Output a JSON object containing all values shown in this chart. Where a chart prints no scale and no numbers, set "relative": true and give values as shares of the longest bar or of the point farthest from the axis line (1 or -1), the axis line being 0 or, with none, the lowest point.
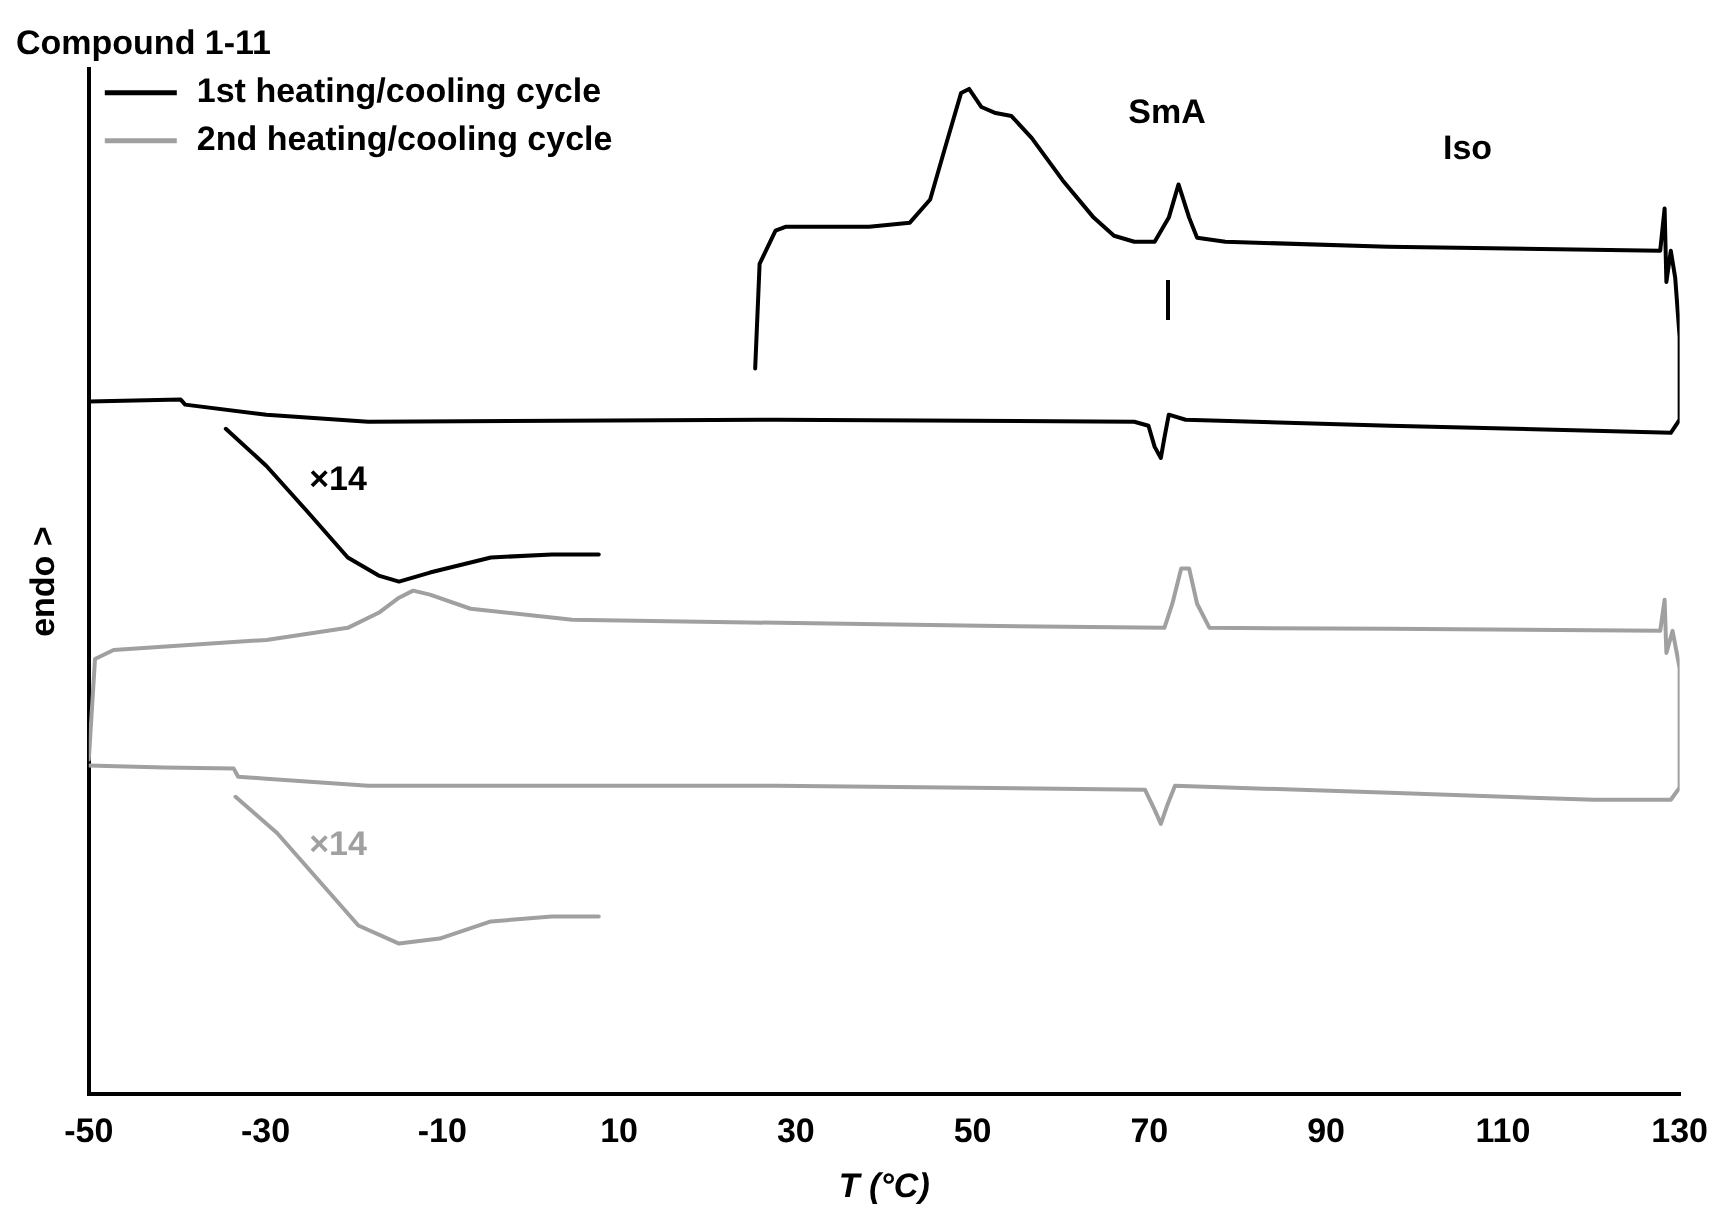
{
  "chart_data": {
    "type": "line",
    "title": "Compound 1-11",
    "xlabel": "T (°C)",
    "ylabel": "endo >",
    "relative": true,
    "xlim": [
      -50,
      130
    ],
    "xticks": [
      -50,
      -30,
      -10,
      10,
      30,
      50,
      70,
      90,
      110,
      130
    ],
    "grid": false,
    "legend": "top left",
    "marker": "none",
    "line_style": "solid",
    "annotations": [
      "SmA",
      "Iso",
      "×14",
      "×14"
    ],
    "series": [
      {
        "name": "1st heating/cooling cycle",
        "color": "#000000",
        "x": [
          25.4,
          25.9,
          27.7,
          28.9,
          38.3,
          42.9,
          45.2,
          47.0,
          48.7,
          49.6,
          51,
          52.6,
          54.4,
          56.7,
          60.2,
          63.7,
          66,
          68.3,
          70.6,
          72.2,
          73.3,
          74.5,
          75.4,
          78.6,
          97,
          127.8,
          128.3,
          128.5,
          129,
          129.5,
          130,
          130,
          129,
          120.3,
          97.2,
          74.1,
          72.2,
          71.7,
          71.3,
          70.6,
          69.9,
          68.3,
          27.8,
          -18.4,
          -29.9,
          -39.1,
          -39.6,
          -50
        ],
        "values": [
          0.722,
          0.826,
          0.859,
          0.863,
          0.863,
          0.867,
          0.89,
          0.945,
          0.996,
          1.0,
          0.982,
          0.976,
          0.973,
          0.951,
          0.909,
          0.872,
          0.854,
          0.848,
          0.848,
          0.872,
          0.905,
          0.872,
          0.852,
          0.848,
          0.843,
          0.839,
          0.881,
          0.808,
          0.839,
          0.812,
          0.753,
          0.671,
          0.658,
          0.66,
          0.665,
          0.671,
          0.676,
          0.653,
          0.633,
          0.644,
          0.665,
          0.669,
          0.671,
          0.669,
          0.676,
          0.686,
          0.691,
          0.689
        ]
      },
      {
        "name": "2nd heating/cooling cycle",
        "color": "#a0a0a0",
        "x": [
          -50,
          -49.3,
          -47.2,
          -29.9,
          -20.7,
          -17.2,
          -14.9,
          -13.3,
          -11.4,
          -6.8,
          4.7,
          50.9,
          71.7,
          72.6,
          73.6,
          74.5,
          75.4,
          76.8,
          97.1,
          127.8,
          128.3,
          128.5,
          129.2,
          130,
          130,
          129,
          120.3,
          97.2,
          72.9,
          72,
          71.3,
          70.6,
          69.5,
          27.8,
          -18.4,
          -29.9,
          -33.1,
          -33.6,
          -41.5,
          -50
        ],
        "values": [
          0.333,
          0.433,
          0.442,
          0.452,
          0.464,
          0.479,
          0.494,
          0.501,
          0.497,
          0.483,
          0.472,
          0.466,
          0.464,
          0.488,
          0.523,
          0.523,
          0.488,
          0.464,
          0.463,
          0.461,
          0.492,
          0.439,
          0.461,
          0.424,
          0.305,
          0.293,
          0.293,
          0.3,
          0.307,
          0.287,
          0.269,
          0.283,
          0.303,
          0.307,
          0.307,
          0.314,
          0.316,
          0.324,
          0.325,
          0.327
        ]
      },
      {
        "color": "#000000",
        "x": [
          -34.5,
          -29.9,
          -25.3,
          -20.7,
          -17.2,
          -14.9,
          -11.4,
          -4.5,
          2.4,
          7.7
        ],
        "values": [
          0.662,
          0.625,
          0.58,
          0.534,
          0.516,
          0.51,
          0.519,
          0.534,
          0.537,
          0.537
        ]
      },
      {
        "color": "#a0a0a0",
        "x": [
          -33.4,
          -28.7,
          -24.1,
          -19.5,
          -14.9,
          -10.3,
          -4.5,
          2.4,
          7.7
        ],
        "values": [
          0.296,
          0.26,
          0.214,
          0.168,
          0.15,
          0.155,
          0.172,
          0.177,
          0.177
        ]
      }
    ]
  }
}
